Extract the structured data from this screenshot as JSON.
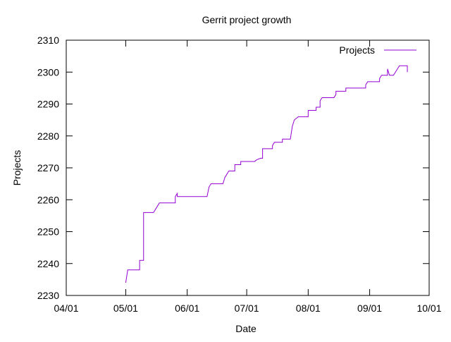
{
  "chart_data": {
    "type": "line",
    "title": "Gerrit project growth",
    "xlabel": "Date",
    "ylabel": "Projects",
    "legend_position": "top-right",
    "grid": false,
    "x_axis_type": "date",
    "xlim": [
      "2023-04-01",
      "2023-10-01"
    ],
    "ylim": [
      2230,
      2310
    ],
    "x_ticks": [
      {
        "date": "2023-04-01",
        "label": "04/01"
      },
      {
        "date": "2023-05-01",
        "label": "05/01"
      },
      {
        "date": "2023-06-01",
        "label": "06/01"
      },
      {
        "date": "2023-07-01",
        "label": "07/01"
      },
      {
        "date": "2023-08-01",
        "label": "08/01"
      },
      {
        "date": "2023-09-01",
        "label": "09/01"
      },
      {
        "date": "2023-10-01",
        "label": "10/01"
      }
    ],
    "y_ticks": [
      2230,
      2240,
      2250,
      2260,
      2270,
      2280,
      2290,
      2300,
      2310
    ],
    "series": [
      {
        "name": "Projects",
        "color": "#9400d3",
        "style": "step",
        "points": [
          [
            "2023-05-01",
            2234
          ],
          [
            "2023-05-02",
            2238
          ],
          [
            "2023-05-08",
            2238
          ],
          [
            "2023-05-08",
            2241
          ],
          [
            "2023-05-10",
            2241
          ],
          [
            "2023-05-10",
            2256
          ],
          [
            "2023-05-15",
            2256
          ],
          [
            "2023-05-16",
            2257
          ],
          [
            "2023-05-17",
            2258
          ],
          [
            "2023-05-18",
            2259
          ],
          [
            "2023-05-26",
            2259
          ],
          [
            "2023-05-26",
            2261
          ],
          [
            "2023-05-27",
            2262
          ],
          [
            "2023-05-27",
            2261
          ],
          [
            "2023-06-11",
            2261
          ],
          [
            "2023-06-12",
            2264
          ],
          [
            "2023-06-13",
            2265
          ],
          [
            "2023-06-19",
            2265
          ],
          [
            "2023-06-20",
            2267
          ],
          [
            "2023-06-21",
            2268
          ],
          [
            "2023-06-22",
            2269
          ],
          [
            "2023-06-25",
            2269
          ],
          [
            "2023-06-25",
            2271
          ],
          [
            "2023-06-28",
            2271
          ],
          [
            "2023-06-28",
            2272
          ],
          [
            "2023-07-05",
            2272
          ],
          [
            "2023-07-06",
            2272.5
          ],
          [
            "2023-07-08",
            2273
          ],
          [
            "2023-07-09",
            2273
          ],
          [
            "2023-07-09",
            2276
          ],
          [
            "2023-07-14",
            2276
          ],
          [
            "2023-07-14",
            2277
          ],
          [
            "2023-07-15",
            2278
          ],
          [
            "2023-07-19",
            2278
          ],
          [
            "2023-07-19",
            2279
          ],
          [
            "2023-07-23",
            2279
          ],
          [
            "2023-07-24",
            2283
          ],
          [
            "2023-07-25",
            2285
          ],
          [
            "2023-07-27",
            2286
          ],
          [
            "2023-08-01",
            2286
          ],
          [
            "2023-08-01",
            2288
          ],
          [
            "2023-08-05",
            2288
          ],
          [
            "2023-08-05",
            2289
          ],
          [
            "2023-08-07",
            2289
          ],
          [
            "2023-08-07",
            2291
          ],
          [
            "2023-08-08",
            2292
          ],
          [
            "2023-08-14",
            2292
          ],
          [
            "2023-08-15",
            2293
          ],
          [
            "2023-08-15",
            2294
          ],
          [
            "2023-08-20",
            2294
          ],
          [
            "2023-08-20",
            2295
          ],
          [
            "2023-08-30",
            2295
          ],
          [
            "2023-08-30",
            2296
          ],
          [
            "2023-08-31",
            2297
          ],
          [
            "2023-09-06",
            2297
          ],
          [
            "2023-09-06",
            2298
          ],
          [
            "2023-09-07",
            2299
          ],
          [
            "2023-09-10",
            2299
          ],
          [
            "2023-09-10",
            2301
          ],
          [
            "2023-09-11",
            2299
          ],
          [
            "2023-09-13",
            2299
          ],
          [
            "2023-09-14",
            2300
          ],
          [
            "2023-09-15",
            2301
          ],
          [
            "2023-09-16",
            2302
          ],
          [
            "2023-09-20",
            2302
          ],
          [
            "2023-09-20",
            2300
          ]
        ]
      }
    ]
  }
}
